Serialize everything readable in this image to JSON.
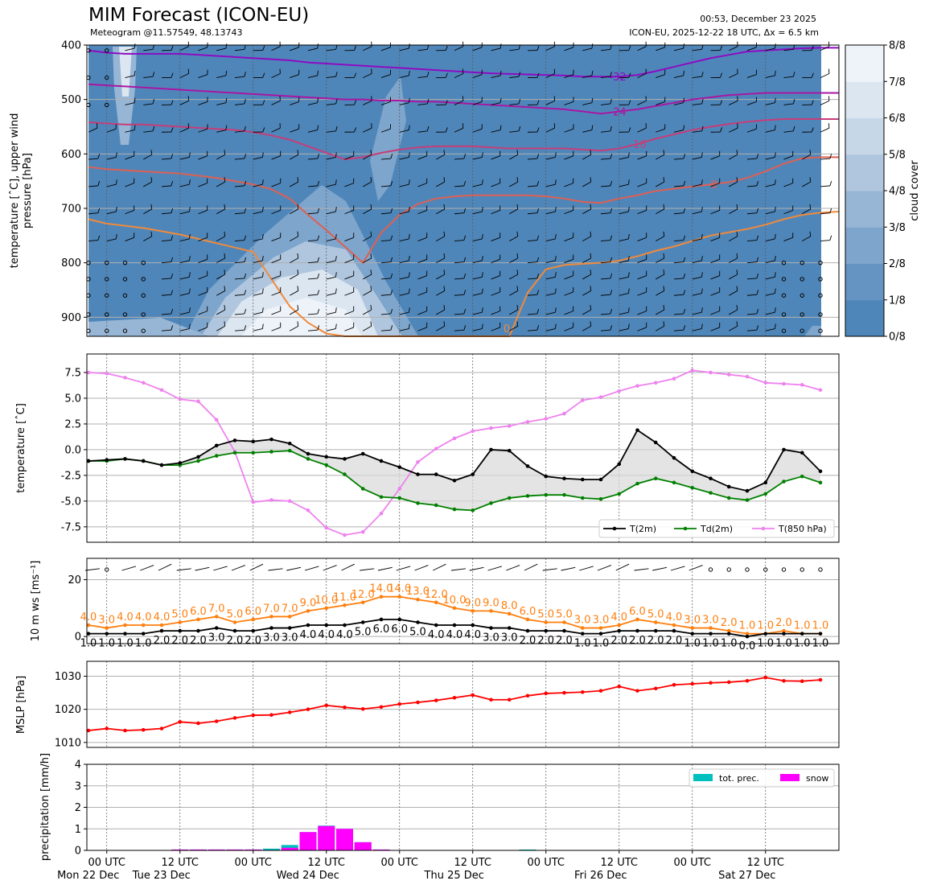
{
  "header": {
    "title": "MIM Forecast (ICON-EU)",
    "subtitle": "Meteogram @11.57549, 48.13743",
    "run_time": "00:53, December 23 2025",
    "run_info": "ICON-EU, 2025-12-22 18 UTC, Δx = 6.5 km"
  },
  "time_axis": {
    "n_steps": 42,
    "step_hours": 3,
    "start_hour_offset": -3,
    "ticks": [
      {
        "hour": 0,
        "label1": "00 UTC",
        "label2": "Mon 22 Dec"
      },
      {
        "hour": 12,
        "label1": "12 UTC",
        "label2": "Tue 23 Dec"
      },
      {
        "hour": 24,
        "label1": "00 UTC",
        "label2": ""
      },
      {
        "hour": 36,
        "label1": "12 UTC",
        "label2": "Wed 24 Dec"
      },
      {
        "hour": 48,
        "label1": "00 UTC",
        "label2": ""
      },
      {
        "hour": 60,
        "label1": "12 UTC",
        "label2": "Thu 25 Dec"
      },
      {
        "hour": 72,
        "label1": "00 UTC",
        "label2": ""
      },
      {
        "hour": 84,
        "label1": "12 UTC",
        "label2": "Fri 26 Dec"
      },
      {
        "hour": 96,
        "label1": "00 UTC",
        "label2": ""
      },
      {
        "hour": 108,
        "label1": "12 UTC",
        "label2": "Sat 27 Dec"
      }
    ]
  },
  "chart_data": [
    {
      "type": "heatmap",
      "name": "upper-air cross section",
      "ylabel_lines": [
        "temperature [$^\\circ$C], upper wind",
        "pressure [hPa]"
      ],
      "ylabel_display": [
        "temperature [ˆC], upper wind",
        "pressure [hPa]"
      ],
      "ylim": [
        935,
        400
      ],
      "yticks": [
        400,
        500,
        600,
        700,
        800,
        900
      ],
      "colorbar": {
        "label": "cloud cover",
        "ticks": [
          "0/8",
          "1/8",
          "2/8",
          "3/8",
          "4/8",
          "5/8",
          "6/8",
          "7/8",
          "8/8"
        ],
        "colors": [
          "#4f86b9",
          "#6593c2",
          "#7ea5cc",
          "#97b6d5",
          "#afc6de",
          "#c6d7e8",
          "#dbe6f1",
          "#eef3f9"
        ]
      },
      "isotherms": [
        {
          "label": "-32",
          "color": "#8c0cc2",
          "values": [
            410,
            414,
            416,
            416,
            416,
            416,
            418,
            420,
            422,
            424,
            426,
            428,
            432,
            434,
            436,
            438,
            440,
            442,
            444,
            446,
            448,
            450,
            452,
            453,
            454,
            455,
            456,
            458,
            458,
            458,
            455,
            448,
            440,
            432,
            424,
            418,
            412,
            410,
            408,
            406,
            405,
            405
          ]
        },
        {
          "label": "-24",
          "color": "#a817a4",
          "values": [
            472,
            474,
            476,
            478,
            480,
            482,
            484,
            486,
            488,
            490,
            492,
            494,
            496,
            498,
            500,
            500,
            502,
            502,
            504,
            504,
            506,
            508,
            510,
            512,
            514,
            516,
            518,
            522,
            526,
            522,
            518,
            512,
            506,
            500,
            496,
            492,
            490,
            488,
            488,
            488,
            488,
            488
          ]
        },
        {
          "label": "-16",
          "color": "#c63d79",
          "values": [
            542,
            544,
            546,
            546,
            548,
            550,
            552,
            554,
            556,
            560,
            566,
            574,
            586,
            598,
            610,
            606,
            598,
            592,
            588,
            586,
            586,
            586,
            588,
            590,
            590,
            590,
            590,
            592,
            594,
            590,
            582,
            572,
            564,
            556,
            550,
            545,
            541,
            538,
            536,
            536,
            536,
            536
          ]
        },
        {
          "label": "-8",
          "color": "#dd6054",
          "values": [
            624,
            628,
            630,
            632,
            634,
            636,
            640,
            644,
            650,
            656,
            665,
            682,
            712,
            740,
            770,
            800,
            745,
            712,
            692,
            682,
            678,
            676,
            676,
            676,
            676,
            678,
            682,
            688,
            690,
            682,
            676,
            668,
            664,
            660,
            656,
            652,
            644,
            632,
            618,
            608,
            606,
            606
          ]
        },
        {
          "label": "0",
          "color": "#f08a3c",
          "values": [
            720,
            728,
            732,
            736,
            742,
            748,
            756,
            764,
            772,
            780,
            830,
            880,
            910,
            930,
            935,
            935,
            935,
            935,
            935,
            935,
            935,
            935,
            935,
            935,
            855,
            812,
            804,
            802,
            800,
            796,
            788,
            778,
            770,
            760,
            750,
            744,
            738,
            730,
            720,
            712,
            708,
            706
          ]
        }
      ]
    },
    {
      "type": "line",
      "name": "surface temperature",
      "ylabel": "temperature [ˆC]",
      "ylim": [
        -9.0,
        9.3
      ],
      "yticks": [
        -7.5,
        -5.0,
        -2.5,
        0.0,
        2.5,
        5.0,
        7.5
      ],
      "series": [
        {
          "name": "T(2m)",
          "color": "#000000",
          "values": [
            -1.1,
            -1.0,
            -0.9,
            -1.1,
            -1.5,
            -1.3,
            -0.7,
            0.4,
            0.9,
            0.8,
            1.0,
            0.6,
            -0.4,
            -0.7,
            -0.9,
            -0.4,
            -1.1,
            -1.7,
            -2.4,
            -2.4,
            -3.0,
            -2.4,
            0.0,
            -0.1,
            -1.6,
            -2.6,
            -2.8,
            -2.9,
            -2.9,
            -1.4,
            1.9,
            0.7,
            -0.8,
            -2.1,
            -2.8,
            -3.6,
            -4.0,
            -3.2,
            0.0,
            -0.3,
            -2.1
          ]
        },
        {
          "name": "Td(2m)",
          "color": "#008000",
          "values": [
            -1.1,
            -1.1,
            -0.9,
            -1.1,
            -1.5,
            -1.5,
            -1.1,
            -0.6,
            -0.3,
            -0.3,
            -0.2,
            -0.1,
            -0.9,
            -1.5,
            -2.4,
            -3.8,
            -4.6,
            -4.7,
            -5.2,
            -5.4,
            -5.8,
            -5.9,
            -5.2,
            -4.7,
            -4.5,
            -4.4,
            -4.4,
            -4.7,
            -4.8,
            -4.3,
            -3.3,
            -2.8,
            -3.2,
            -3.7,
            -4.2,
            -4.7,
            -4.9,
            -4.3,
            -3.1,
            -2.6,
            -3.2
          ]
        },
        {
          "name": "T(850 hPa)",
          "color": "#ee82ee",
          "values": [
            7.5,
            7.4,
            7.0,
            6.5,
            5.8,
            4.9,
            4.7,
            2.9,
            -0.2,
            -5.1,
            -4.9,
            -5.0,
            -5.9,
            -7.6,
            -8.3,
            -8.0,
            -6.2,
            -3.8,
            -1.2,
            0.1,
            1.1,
            1.8,
            2.1,
            2.3,
            2.7,
            3.0,
            3.5,
            4.8,
            5.1,
            5.7,
            6.2,
            6.5,
            6.9,
            7.7,
            7.5,
            7.3,
            7.1,
            6.5,
            6.4,
            6.3,
            5.8
          ]
        }
      ]
    },
    {
      "type": "line",
      "name": "10 m wind",
      "ylabel": "10 m ws [ms⁻¹]",
      "ylim": [
        -2.5,
        27.5
      ],
      "yticks": [
        0,
        20
      ],
      "series": [
        {
          "name": "gust",
          "color": "#ff7f0e",
          "values": [
            4.0,
            3.0,
            4.0,
            4.0,
            4.0,
            5.0,
            6.0,
            7.0,
            5.0,
            6.0,
            7.0,
            7.0,
            9.0,
            10.0,
            11.0,
            12.0,
            14.0,
            14.0,
            13.0,
            12.0,
            10.0,
            9.0,
            9.0,
            8.0,
            6.0,
            5.0,
            5.0,
            3.0,
            3.0,
            4.0,
            6.0,
            5.0,
            4.0,
            3.0,
            3.0,
            2.0,
            1.0,
            1.0,
            2.0,
            1.0,
            1.0
          ]
        },
        {
          "name": "mean",
          "color": "#000000",
          "values": [
            1.0,
            1.0,
            1.0,
            1.0,
            2.0,
            2.0,
            2.0,
            3.0,
            2.0,
            2.0,
            3.0,
            3.0,
            4.0,
            4.0,
            4.0,
            5.0,
            6.0,
            6.0,
            5.0,
            4.0,
            4.0,
            4.0,
            3.0,
            3.0,
            2.0,
            2.0,
            2.0,
            1.0,
            1.0,
            2.0,
            2.0,
            2.0,
            2.0,
            1.0,
            1.0,
            1.0,
            0.0,
            1.0,
            1.0,
            1.0,
            1.0
          ]
        }
      ],
      "gust_labels": [
        "4.0",
        "3.0",
        "4.0",
        "4.0",
        "4.0",
        "5.0",
        "6.0",
        "7.0",
        "5.0",
        "6.0",
        "7.0",
        "7.0",
        "9.0",
        "10.0",
        "11.0",
        "12.0",
        "14.0",
        "14.0",
        "13.0",
        "12.0",
        "10.0",
        "9.0",
        "9.0",
        "8.0",
        "6.0",
        "5.0",
        "5.0",
        "3.0",
        "3.0",
        "4.0",
        "6.0",
        "5.0",
        "4.0",
        "3.0",
        "3.0",
        "2.0",
        "1.0",
        "1.0",
        "2.0",
        "1.0",
        "1.0"
      ],
      "mean_labels": [
        "1.0",
        "1.0",
        "1.0",
        "1.0",
        "2.0",
        "2.0",
        "2.0",
        "3.0",
        "2.0",
        "2.0",
        "3.0",
        "3.0",
        "4.0",
        "4.0",
        "4.0",
        "5.0",
        "6.0",
        "6.0",
        "5.0",
        "4.0",
        "4.0",
        "4.0",
        "3.0",
        "3.0",
        "2.0",
        "2.0",
        "2.0",
        "1.0",
        "1.0",
        "2.0",
        "2.0",
        "2.0",
        "2.0",
        "1.0",
        "1.0",
        "1.0",
        "0.0",
        "1.0",
        "1.0",
        "1.0",
        "1.0"
      ]
    },
    {
      "type": "line",
      "name": "mean sea level pressure",
      "ylabel": "MSLP [hPa]",
      "ylim": [
        1008.5,
        1034.5
      ],
      "yticks": [
        1010,
        1020,
        1030
      ],
      "series": [
        {
          "name": "MSLP",
          "color": "#ff0000",
          "values": [
            1013.6,
            1014.2,
            1013.6,
            1013.8,
            1014.2,
            1016.2,
            1015.8,
            1016.4,
            1017.4,
            1018.2,
            1018.3,
            1019.1,
            1020.0,
            1021.2,
            1020.6,
            1020.1,
            1020.7,
            1021.6,
            1022.1,
            1022.7,
            1023.5,
            1024.3,
            1022.9,
            1022.9,
            1024.1,
            1024.8,
            1025.0,
            1025.2,
            1025.6,
            1026.9,
            1025.6,
            1026.3,
            1027.4,
            1027.7,
            1028.0,
            1028.2,
            1028.6,
            1029.6,
            1028.6,
            1028.5,
            1028.9
          ]
        }
      ]
    },
    {
      "type": "bar",
      "name": "precipitation",
      "ylabel": "precipitation [mm/h]",
      "ylim": [
        0,
        4
      ],
      "yticks": [
        0,
        1,
        2,
        3,
        4
      ],
      "series": [
        {
          "name": "tot. prec.",
          "color": "#00bfbf",
          "values": [
            0,
            0,
            0,
            0,
            0,
            0.04,
            0.04,
            0.04,
            0.04,
            0.04,
            0.08,
            0.25,
            0.85,
            1.15,
            1.0,
            0.38,
            0.04,
            0,
            0,
            0,
            0,
            0,
            0,
            0,
            0.04,
            0,
            0,
            0,
            0,
            0,
            0,
            0,
            0,
            0,
            0,
            0,
            0,
            0,
            0,
            0,
            0
          ]
        },
        {
          "name": "snow",
          "color": "#ff00ff",
          "values": [
            0,
            0,
            0,
            0,
            0,
            0.04,
            0.04,
            0.04,
            0.04,
            0.04,
            0.02,
            0.12,
            0.85,
            1.13,
            1.0,
            0.38,
            0.04,
            0,
            0,
            0,
            0,
            0,
            0,
            0,
            0,
            0,
            0,
            0,
            0,
            0,
            0,
            0,
            0,
            0,
            0,
            0,
            0,
            0,
            0,
            0,
            0
          ]
        }
      ]
    }
  ]
}
